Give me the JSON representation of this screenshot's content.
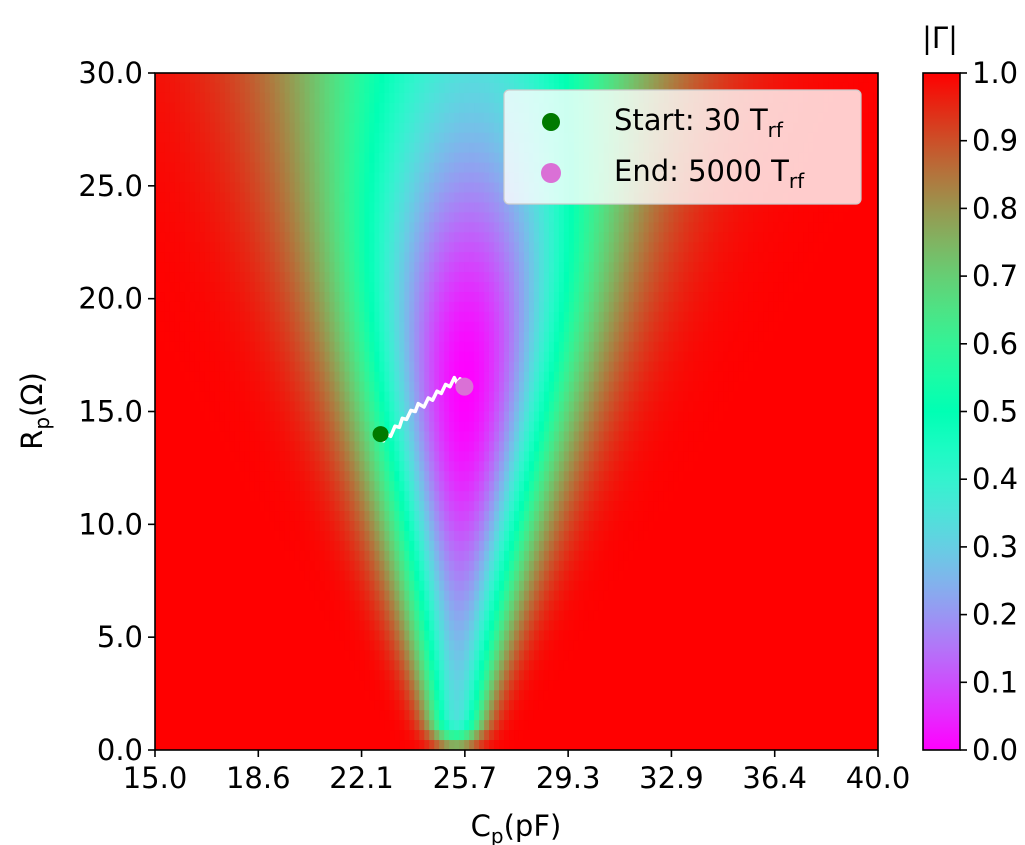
{
  "chart_data": {
    "type": "heatmap",
    "x": {
      "label": "C",
      "label_sub": "p",
      "label_unit": "(pF)",
      "range": [
        15.0,
        40.0
      ],
      "ticks": [
        "15.0",
        "18.6",
        "22.1",
        "25.7",
        "29.3",
        "32.9",
        "36.4",
        "40.0"
      ]
    },
    "y": {
      "label": "R",
      "label_sub": "p",
      "label_unit": "(Ω)",
      "range": [
        0.0,
        30.0
      ],
      "ticks": [
        "0.0",
        "5.0",
        "10.0",
        "15.0",
        "20.0",
        "25.0",
        "30.0"
      ]
    },
    "colorbar": {
      "label": "|Γ|",
      "range": [
        0.0,
        1.0
      ],
      "ticks": [
        "0.0",
        "0.1",
        "0.2",
        "0.3",
        "0.4",
        "0.5",
        "0.6",
        "0.7",
        "0.8",
        "0.9",
        "1.0"
      ],
      "colormap": "rainbow"
    },
    "field": {
      "description_of_minimum": "resonance valley",
      "resonance_c": 25.7,
      "min_value": 0.0
    },
    "legend": {
      "placement": "top-right",
      "entries": [
        {
          "label": "Start: 30 T",
          "label_sub": "rf",
          "color": "#007a00",
          "marker": "circle"
        },
        {
          "label": "End: 5000 T",
          "label_sub": "rf",
          "color": "#da70d6",
          "marker": "circle"
        }
      ]
    },
    "start_point": {
      "c": 22.8,
      "r": 14.0,
      "color": "#007a00"
    },
    "end_point": {
      "c": 25.7,
      "r": 16.1,
      "color": "#da70d6"
    },
    "trajectory": {
      "color": "#ffffff",
      "points": [
        [
          22.9,
          13.7
        ],
        [
          23.0,
          14.0
        ],
        [
          23.15,
          13.9
        ],
        [
          23.3,
          14.35
        ],
        [
          23.45,
          14.3
        ],
        [
          23.55,
          14.7
        ],
        [
          23.7,
          14.65
        ],
        [
          23.85,
          15.05
        ],
        [
          24.0,
          15.0
        ],
        [
          24.1,
          15.35
        ],
        [
          24.3,
          15.2
        ],
        [
          24.45,
          15.6
        ],
        [
          24.6,
          15.5
        ],
        [
          24.75,
          15.9
        ],
        [
          24.9,
          15.8
        ],
        [
          25.05,
          16.2
        ],
        [
          25.2,
          16.1
        ],
        [
          25.35,
          16.5
        ],
        [
          25.45,
          16.25
        ],
        [
          25.55,
          16.45
        ],
        [
          25.65,
          16.2
        ]
      ]
    }
  }
}
